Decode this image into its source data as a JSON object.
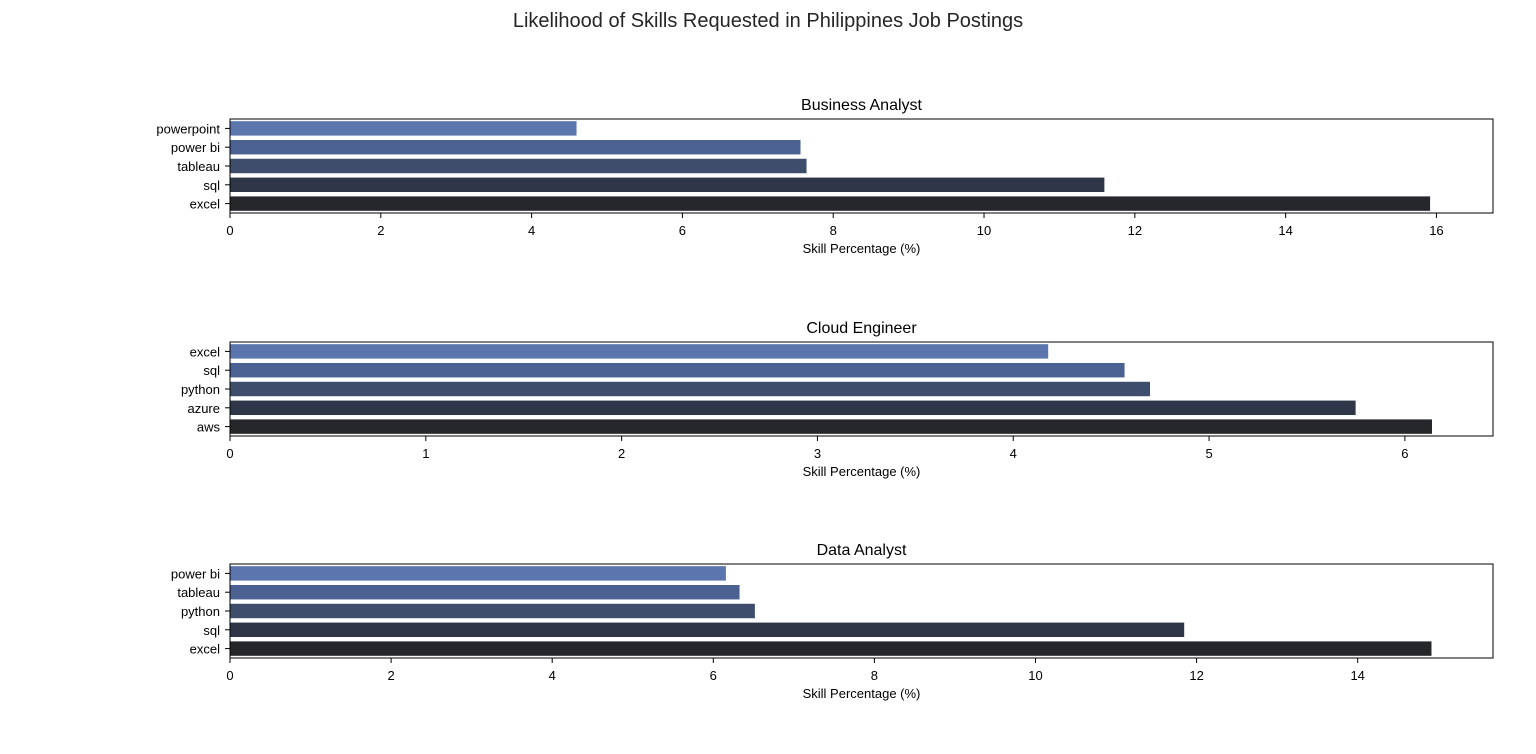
{
  "figure": {
    "suptitle": "Likelihood of Skills Requested in Philippines Job Postings"
  },
  "chart_data": [
    {
      "type": "bar",
      "orientation": "horizontal",
      "title": "Business Analyst",
      "xlabel": "Skill Percentage (%)",
      "ylabel": "",
      "categories": [
        "powerpoint",
        "power bi",
        "tableau",
        "sql",
        "excel"
      ],
      "values": [
        4.6,
        7.57,
        7.65,
        11.6,
        15.92
      ],
      "xlim": [
        0,
        16.75
      ],
      "xticks": [
        0,
        2,
        4,
        6,
        8,
        10,
        12,
        14,
        16
      ],
      "grid": false,
      "legend": "none"
    },
    {
      "type": "bar",
      "orientation": "horizontal",
      "title": "Cloud Engineer",
      "xlabel": "Skill Percentage (%)",
      "ylabel": "",
      "categories": [
        "excel",
        "sql",
        "python",
        "azure",
        "aws"
      ],
      "values": [
        4.18,
        4.57,
        4.7,
        5.75,
        6.14
      ],
      "xlim": [
        0,
        6.45
      ],
      "xticks": [
        0,
        1,
        2,
        3,
        4,
        5,
        6
      ],
      "grid": false,
      "legend": "none"
    },
    {
      "type": "bar",
      "orientation": "horizontal",
      "title": "Data Analyst",
      "xlabel": "Skill Percentage (%)",
      "ylabel": "",
      "categories": [
        "power bi",
        "tableau",
        "python",
        "sql",
        "excel"
      ],
      "values": [
        6.16,
        6.33,
        6.52,
        11.85,
        14.92
      ],
      "xlim": [
        0,
        15.68
      ],
      "xticks": [
        0,
        2,
        4,
        6,
        8,
        10,
        12,
        14
      ],
      "grid": false,
      "legend": "none"
    }
  ],
  "colors": {
    "bars": [
      "#5a76ad",
      "#4a6191",
      "#3e4d6b",
      "#2e3647",
      "#26272b"
    ],
    "text": "#000000",
    "axis": "#000000"
  }
}
